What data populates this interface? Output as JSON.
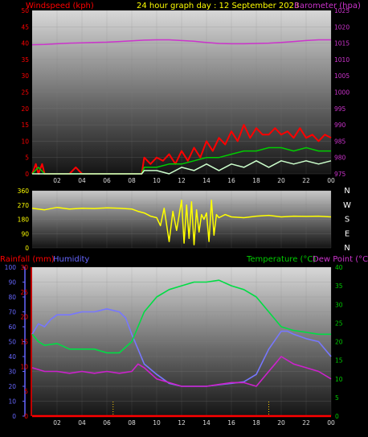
{
  "header": {
    "title": "24 hour graph day : 12 September 2023",
    "windspeed_label": "Windspeed (kph)",
    "barometer_label": "Barometer (hpa)"
  },
  "lower_header": {
    "rainfall_label": "Rainfall (mm)",
    "humidity_label": "Humidity",
    "temperature_label": "Temperature (°C)",
    "dewpoint_label": "Dew Point (°C)"
  },
  "colors": {
    "wind": "#ff0000",
    "gust": "#ff0000",
    "wind_avg": "#00cc00",
    "wind_low": "#ccffcc",
    "barometer": "#cc33cc",
    "direction": "#ffff00",
    "humidity": "#7777ff",
    "temperature": "#00dd44",
    "dewpoint": "#cc22cc",
    "rainfall": "#ff0000",
    "rain_axis": "#ff0000",
    "humidity_axis": "#6666ff",
    "temp_axis": "#00cc00"
  },
  "chart_data": [
    {
      "type": "line",
      "panel": "wind-barometer",
      "xlabel_ticks": [
        "02",
        "04",
        "06",
        "08",
        "10",
        "12",
        "14",
        "16",
        "18",
        "20",
        "22",
        "00"
      ],
      "xlim": [
        0,
        24
      ],
      "y_left": {
        "label": "Windspeed (kph)",
        "ticks": [
          "0",
          "5",
          "10",
          "15",
          "20",
          "25",
          "30",
          "35",
          "40",
          "45",
          "50"
        ],
        "ylim": [
          0,
          50
        ]
      },
      "y_right": {
        "label": "Barometer (hpa)",
        "ticks": [
          "975",
          "980",
          "985",
          "990",
          "995",
          "1000",
          "1005",
          "1010",
          "1015",
          "1020",
          "1025"
        ],
        "ylim": [
          975,
          1025
        ]
      },
      "series": [
        {
          "name": "Windspeed",
          "color_key": "gust",
          "x": [
            0,
            0.3,
            0.5,
            0.8,
            1.0,
            1.5,
            2.0,
            2.5,
            3.0,
            3.5,
            4,
            5,
            6,
            7,
            8,
            8.5,
            8.8,
            9,
            9.5,
            10,
            10.5,
            11,
            11.5,
            12,
            12.5,
            13,
            13.5,
            14,
            14.5,
            15,
            15.5,
            16,
            16.5,
            17,
            17.5,
            18,
            18.5,
            19,
            19.5,
            20,
            20.5,
            21,
            21.5,
            22,
            22.5,
            23,
            23.5,
            24
          ],
          "values": [
            0,
            3,
            0,
            3,
            0,
            0,
            0,
            0,
            0,
            2,
            0,
            0,
            0,
            0,
            0,
            0,
            0,
            5,
            3,
            5,
            4,
            6,
            3,
            7,
            4,
            8,
            5,
            10,
            7,
            11,
            9,
            13,
            10,
            15,
            11,
            14,
            12,
            12,
            14,
            12,
            13,
            11,
            14,
            11,
            12,
            10,
            12,
            11
          ]
        },
        {
          "name": "Average",
          "color_key": "wind_avg",
          "x": [
            0,
            0.5,
            1,
            1.5,
            2,
            4,
            6,
            8,
            8.8,
            9,
            10,
            11,
            12,
            13,
            14,
            15,
            16,
            17,
            18,
            19,
            20,
            21,
            22,
            23,
            24
          ],
          "values": [
            0,
            2,
            0,
            0,
            0,
            0,
            0,
            0,
            0,
            2,
            2,
            3,
            3,
            4,
            5,
            5,
            6,
            7,
            7,
            8,
            8,
            7,
            8,
            7,
            7
          ]
        },
        {
          "name": "Low",
          "color_key": "wind_low",
          "x": [
            0,
            8.8,
            9,
            10,
            11,
            12,
            13,
            14,
            15,
            16,
            17,
            18,
            19,
            20,
            21,
            22,
            23,
            24
          ],
          "values": [
            0,
            0,
            1,
            1,
            0,
            2,
            1,
            3,
            1,
            3,
            2,
            4,
            2,
            4,
            3,
            4,
            3,
            4
          ]
        },
        {
          "name": "Barometer",
          "color_key": "barometer",
          "axis": "right",
          "x": [
            0,
            1,
            2,
            3,
            4,
            5,
            6,
            7,
            8,
            9,
            10,
            11,
            12,
            13,
            14,
            15,
            16,
            17,
            18,
            19,
            20,
            21,
            22,
            23,
            24
          ],
          "values": [
            1014.5,
            1014.6,
            1014.8,
            1015.0,
            1015.1,
            1015.2,
            1015.3,
            1015.5,
            1015.7,
            1015.9,
            1016.0,
            1016.0,
            1015.8,
            1015.6,
            1015.2,
            1014.9,
            1014.8,
            1014.8,
            1014.9,
            1015.0,
            1015.2,
            1015.5,
            1015.8,
            1016.0,
            1016.0
          ]
        }
      ]
    },
    {
      "type": "line",
      "panel": "wind-direction",
      "xlim": [
        0,
        24
      ],
      "y_left": {
        "ticks": [
          "0",
          "90",
          "180",
          "270",
          "360"
        ],
        "ylim": [
          0,
          360
        ]
      },
      "y_right": {
        "ticks": [
          "N",
          "W",
          "S",
          "E",
          "N"
        ]
      },
      "series": [
        {
          "name": "Direction",
          "color_key": "direction",
          "x": [
            0,
            1,
            2,
            3,
            4,
            5,
            6,
            7,
            8,
            8.5,
            9,
            9.5,
            10,
            10.3,
            10.6,
            11,
            11.3,
            11.6,
            12,
            12.2,
            12.4,
            12.6,
            12.8,
            13,
            13.2,
            13.4,
            13.6,
            13.8,
            14,
            14.2,
            14.4,
            14.6,
            14.8,
            15,
            15.5,
            16,
            17,
            18,
            19,
            20,
            21,
            22,
            23,
            24
          ],
          "values": [
            250,
            240,
            255,
            245,
            250,
            248,
            252,
            250,
            245,
            230,
            220,
            200,
            190,
            140,
            250,
            40,
            230,
            110,
            300,
            30,
            270,
            60,
            290,
            20,
            240,
            100,
            210,
            180,
            220,
            40,
            300,
            80,
            210,
            190,
            210,
            195,
            190,
            200,
            205,
            195,
            200,
            198,
            200,
            195
          ]
        }
      ]
    },
    {
      "type": "line",
      "panel": "temperature-humidity-rain",
      "xlim": [
        0,
        24
      ],
      "y_humidity": {
        "label": "Humidity",
        "ticks": [
          "0",
          "10",
          "20",
          "30",
          "40",
          "50",
          "60",
          "70",
          "80",
          "90",
          "100"
        ],
        "ylim": [
          0,
          100
        ]
      },
      "y_rain": {
        "label": "Rainfall (mm)",
        "ticks": [
          "0",
          "5",
          "10",
          "15",
          "20",
          "25",
          "30"
        ],
        "ylim": [
          0,
          30
        ]
      },
      "y_right": {
        "label": "Temperature (°C)",
        "ticks": [
          "0",
          "5",
          "10",
          "15",
          "20",
          "25",
          "30",
          "35",
          "40"
        ],
        "ylim": [
          0,
          40
        ]
      },
      "series": [
        {
          "name": "Humidity",
          "color_key": "humidity",
          "axis": "humidity",
          "x": [
            0,
            0.5,
            1,
            1.5,
            2,
            3,
            4,
            5,
            6,
            7,
            7.5,
            8,
            8.5,
            9,
            10,
            11,
            12,
            13,
            14,
            15,
            16,
            17,
            18,
            19,
            20,
            20.5,
            21,
            22,
            23,
            24
          ],
          "values": [
            55,
            62,
            60,
            65,
            68,
            68,
            70,
            70,
            72,
            70,
            66,
            55,
            45,
            35,
            28,
            22,
            20,
            20,
            20,
            21,
            22,
            23,
            28,
            45,
            57,
            57,
            55,
            52,
            50,
            40
          ]
        },
        {
          "name": "Temperature",
          "color_key": "temperature",
          "axis": "right",
          "x": [
            0,
            0.5,
            1,
            2,
            3,
            4,
            5,
            6,
            7,
            8,
            9,
            10,
            11,
            12,
            13,
            14,
            15,
            16,
            17,
            18,
            19,
            20,
            21,
            22,
            23,
            24
          ],
          "values": [
            22,
            20,
            19,
            19.5,
            18,
            18,
            18,
            17,
            17,
            20,
            28,
            32,
            34,
            35,
            36,
            36,
            36.5,
            35,
            34,
            32,
            28,
            24,
            23,
            22.5,
            22,
            22
          ]
        },
        {
          "name": "Dew Point",
          "color_key": "dewpoint",
          "axis": "right",
          "x": [
            0,
            1,
            2,
            3,
            4,
            5,
            6,
            7,
            8,
            8.5,
            9,
            10,
            11,
            12,
            13,
            14,
            15,
            16,
            17,
            18,
            19,
            19.5,
            20,
            21,
            22,
            23,
            24
          ],
          "values": [
            13,
            12,
            12,
            11.5,
            12,
            11.5,
            12,
            11.5,
            12,
            14,
            13,
            10,
            9,
            8,
            8,
            8,
            8.5,
            9,
            9,
            8,
            12,
            14,
            16,
            14,
            13,
            12,
            10
          ]
        },
        {
          "name": "Rainfall",
          "color_key": "rainfall",
          "axis": "rain",
          "x": [
            0,
            24
          ],
          "values": [
            0,
            0
          ]
        }
      ],
      "markers_x": [
        6.5,
        19
      ]
    }
  ]
}
